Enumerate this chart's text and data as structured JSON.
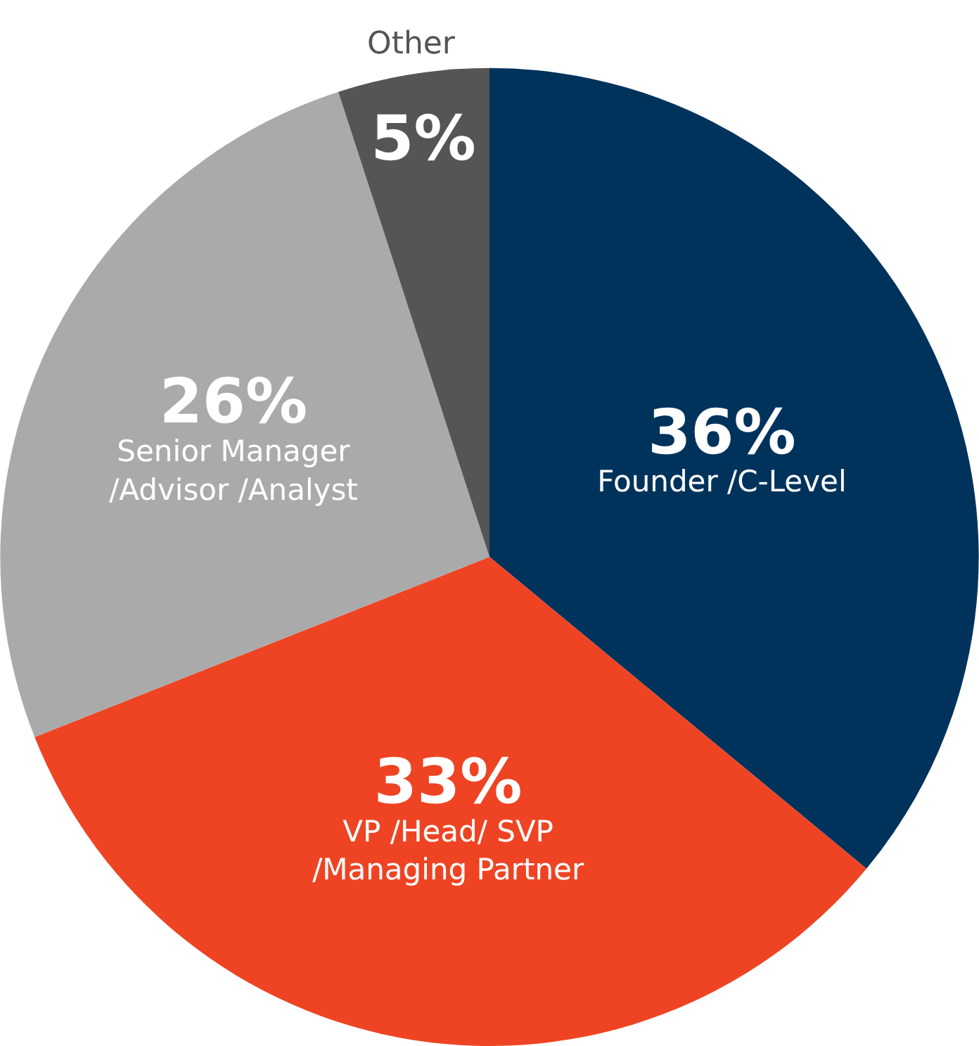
{
  "chart_data": {
    "type": "pie",
    "categories": [
      "Founder /C-Level",
      "VP /Head/ SVP\n/Managing Partner",
      "Senior Manager\n/Advisor /Analyst",
      "Other"
    ],
    "values": [
      36,
      33,
      26,
      5
    ],
    "colors": [
      "#00335c",
      "#ee4423",
      "#aaaaaa",
      "#555555"
    ],
    "value_labels": [
      "36%",
      "33%",
      "26%",
      "5%"
    ]
  }
}
